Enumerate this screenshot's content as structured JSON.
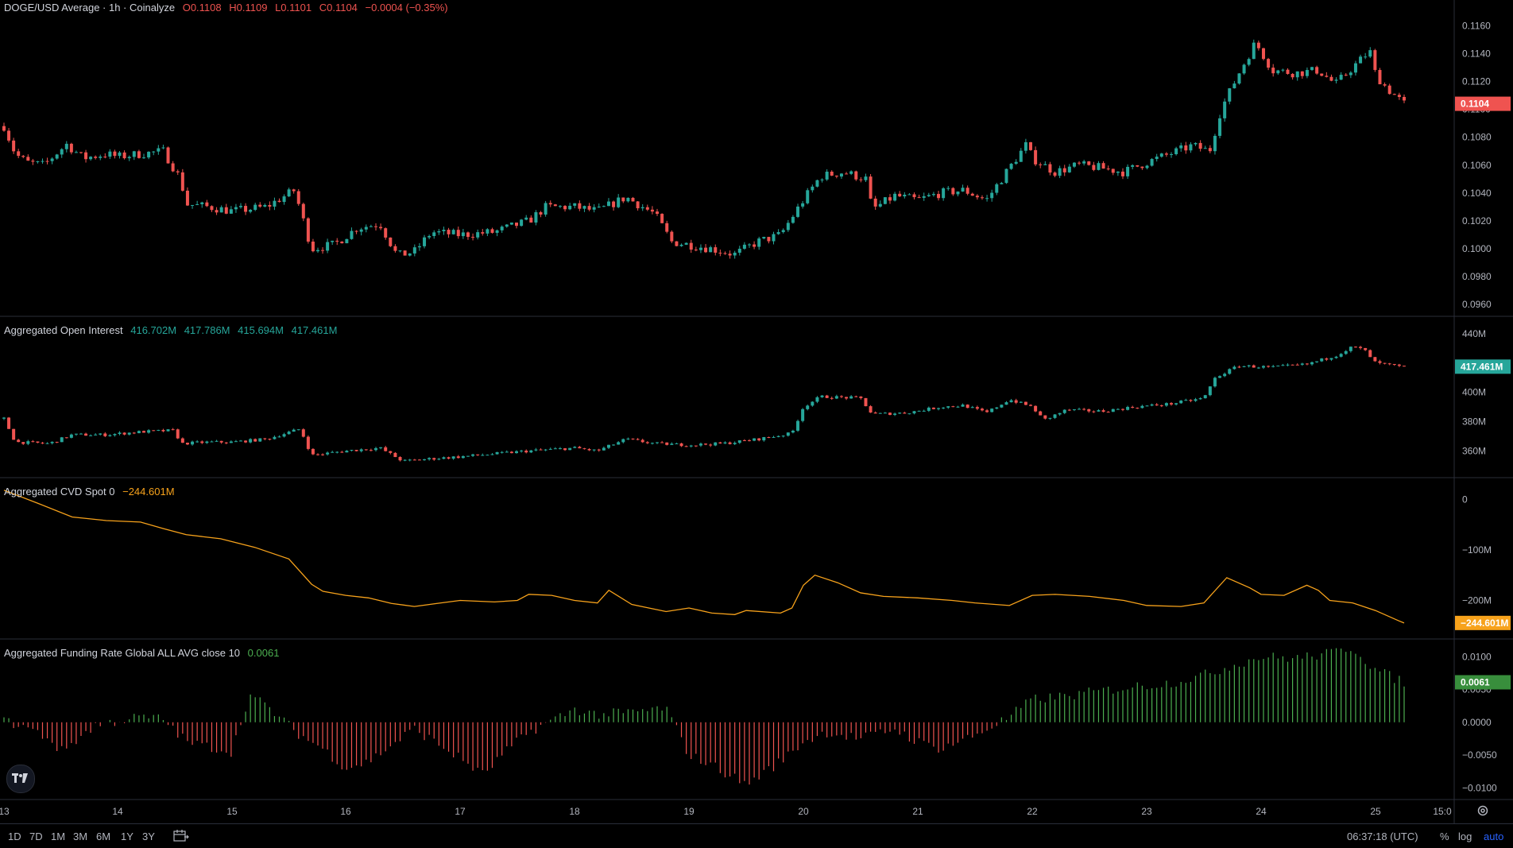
{
  "legend": {
    "price": {
      "title": "DOGE/USD Average · 1h · Coinalyze",
      "o": "O0.1108",
      "h": "H0.1109",
      "l": "L0.1101",
      "c": "C0.1104",
      "chg": "−0.0004 (−0.35%)"
    },
    "oi": {
      "title": "Aggregated Open Interest",
      "v1": "416.702M",
      "v2": "417.786M",
      "v3": "415.694M",
      "v4": "417.461M"
    },
    "cvd": {
      "title": "Aggregated CVD Spot 0",
      "value": "−244.601M"
    },
    "funding": {
      "title": "Aggregated Funding Rate Global ALL AVG close 10",
      "value": "0.0061"
    }
  },
  "colors": {
    "up": "#26a69a",
    "down": "#ef5350",
    "cvd": "#f7a21b",
    "fund_pos": "#4caf50",
    "fund_neg": "#ef5350",
    "grid": "#1e222d"
  },
  "bottom": {
    "ranges": [
      "1D",
      "7D",
      "1M",
      "3M",
      "6M",
      "1Y",
      "3Y"
    ],
    "time": "06:37:18 (UTC)",
    "pct": "%",
    "log": "log",
    "auto": "auto"
  },
  "chart_data": [
    {
      "type": "candlestick",
      "title": "DOGE/USD Average · 1h · Coinalyze",
      "x_axis_ticks": [
        "13",
        "14",
        "15",
        "16",
        "17",
        "18",
        "19",
        "20",
        "21",
        "22",
        "23",
        "24",
        "25",
        "15:0"
      ],
      "y_ticks": [
        "0.1160",
        "0.1140",
        "0.1120",
        "0.1100",
        "0.1080",
        "0.1060",
        "0.1040",
        "0.1020",
        "0.1000",
        "0.0980",
        "0.0960"
      ],
      "ylim": [
        0.0955,
        0.1175
      ],
      "last_value_label": "0.1104",
      "close_path": [
        [
          "13",
          0.1088
        ],
        [
          "13.1",
          0.1068
        ],
        [
          "13.2",
          0.1062
        ],
        [
          "13.35",
          0.106
        ],
        [
          "13.55",
          0.1075
        ],
        [
          "13.7",
          0.1065
        ],
        [
          "13.9",
          0.1068
        ],
        [
          "14",
          0.1066
        ],
        [
          "14.2",
          0.1068
        ],
        [
          "14.4",
          0.107
        ],
        [
          "14.55",
          0.105
        ],
        [
          "14.6",
          0.1032
        ],
        [
          "14.8",
          0.103
        ],
        [
          "15",
          0.1027
        ],
        [
          "15.3",
          0.103
        ],
        [
          "15.55",
          0.1042
        ],
        [
          "15.7",
          0.1
        ],
        [
          "15.9",
          0.1003
        ],
        [
          "16.1",
          0.1015
        ],
        [
          "16.3",
          0.1018
        ],
        [
          "16.45",
          0.0995
        ],
        [
          "16.6",
          0.0998
        ],
        [
          "16.75",
          0.1012
        ],
        [
          "17",
          0.101
        ],
        [
          "17.3",
          0.1012
        ],
        [
          "17.6",
          0.102
        ],
        [
          "17.75",
          0.103
        ],
        [
          "18",
          0.103
        ],
        [
          "18.2",
          0.1027
        ],
        [
          "18.45",
          0.1037
        ],
        [
          "18.7",
          0.1025
        ],
        [
          "18.85",
          0.1005
        ],
        [
          "19",
          0.1003
        ],
        [
          "19.2",
          0.1
        ],
        [
          "19.4",
          0.0996
        ],
        [
          "19.6",
          0.1005
        ],
        [
          "19.8",
          0.101
        ],
        [
          "20",
          0.1035
        ],
        [
          "20.15",
          0.1052
        ],
        [
          "20.35",
          0.1055
        ],
        [
          "20.55",
          0.105
        ],
        [
          "20.6",
          0.1028
        ],
        [
          "20.8",
          0.1038
        ],
        [
          "21",
          0.1035
        ],
        [
          "21.2",
          0.104
        ],
        [
          "21.4",
          0.1042
        ],
        [
          "21.6",
          0.1035
        ],
        [
          "21.8",
          0.1058
        ],
        [
          "21.95",
          0.1075
        ],
        [
          "22",
          0.1065
        ],
        [
          "22.2",
          0.1055
        ],
        [
          "22.4",
          0.106
        ],
        [
          "22.6",
          0.1058
        ],
        [
          "22.8",
          0.1055
        ],
        [
          "23",
          0.1062
        ],
        [
          "23.2",
          0.1068
        ],
        [
          "23.4",
          0.1074
        ],
        [
          "23.55",
          0.107
        ],
        [
          "23.65",
          0.11
        ],
        [
          "23.8",
          0.1125
        ],
        [
          "23.95",
          0.1148
        ],
        [
          "24.1",
          0.1128
        ],
        [
          "24.3",
          0.1126
        ],
        [
          "24.5",
          0.1128
        ],
        [
          "24.65",
          0.1118
        ],
        [
          "24.8",
          0.113
        ],
        [
          "24.95",
          0.1142
        ],
        [
          "25",
          0.1125
        ],
        [
          "25.1",
          0.1115
        ],
        [
          "25.25",
          0.1104
        ]
      ]
    },
    {
      "type": "candlestick",
      "title": "Aggregated Open Interest",
      "y_ticks": [
        "440M",
        "400M",
        "380M",
        "360M"
      ],
      "ylim": [
        345,
        448
      ],
      "last_value_label": "417.461M",
      "close_path": [
        [
          "13",
          382
        ],
        [
          "13.1",
          366
        ],
        [
          "13.4",
          365
        ],
        [
          "13.6",
          371
        ],
        [
          "13.9",
          371
        ],
        [
          "14.2",
          373
        ],
        [
          "14.5",
          374
        ],
        [
          "14.55",
          365
        ],
        [
          "14.8",
          366
        ],
        [
          "15",
          366
        ],
        [
          "15.3",
          368
        ],
        [
          "15.6",
          375
        ],
        [
          "15.7",
          357
        ],
        [
          "16",
          360
        ],
        [
          "16.3",
          362
        ],
        [
          "16.5",
          353
        ],
        [
          "16.8",
          355
        ],
        [
          "17",
          356
        ],
        [
          "17.3",
          358
        ],
        [
          "17.6",
          360
        ],
        [
          "18",
          362
        ],
        [
          "18.2",
          360
        ],
        [
          "18.45",
          368
        ],
        [
          "18.7",
          365
        ],
        [
          "19",
          364
        ],
        [
          "19.3",
          365
        ],
        [
          "19.6",
          368
        ],
        [
          "19.9",
          372
        ],
        [
          "20",
          390
        ],
        [
          "20.15",
          397
        ],
        [
          "20.5",
          396
        ],
        [
          "20.6",
          385
        ],
        [
          "20.9",
          386
        ],
        [
          "21.2",
          390
        ],
        [
          "21.4",
          391
        ],
        [
          "21.6",
          386
        ],
        [
          "21.8",
          395
        ],
        [
          "22",
          390
        ],
        [
          "22.1",
          381
        ],
        [
          "22.3",
          388
        ],
        [
          "22.6",
          387
        ],
        [
          "22.9",
          390
        ],
        [
          "23.2",
          392
        ],
        [
          "23.5",
          396
        ],
        [
          "23.6",
          410
        ],
        [
          "23.8",
          418
        ],
        [
          "24.1",
          417
        ],
        [
          "24.4",
          419
        ],
        [
          "24.65",
          425
        ],
        [
          "24.8",
          431
        ],
        [
          "24.9",
          429
        ],
        [
          "25",
          420
        ],
        [
          "25.25",
          417
        ]
      ]
    },
    {
      "type": "line",
      "title": "Aggregated CVD Spot 0",
      "y_ticks": [
        "0",
        "−100M",
        "−200M"
      ],
      "ylim": [
        -270,
        35
      ],
      "last_value_label": "−244.601M",
      "x": [
        "13",
        "13.3",
        "13.6",
        "13.9",
        "14.2",
        "14.4",
        "14.6",
        "14.9",
        "15.2",
        "15.5",
        "15.7",
        "15.8",
        "16",
        "16.2",
        "16.4",
        "16.6",
        "16.8",
        "17",
        "17.3",
        "17.5",
        "17.6",
        "17.8",
        "18",
        "18.2",
        "18.3",
        "18.5",
        "18.8",
        "19",
        "19.2",
        "19.4",
        "19.5",
        "19.8",
        "19.9",
        "20",
        "20.1",
        "20.3",
        "20.5",
        "20.7",
        "21",
        "21.3",
        "21.5",
        "21.8",
        "22",
        "22.2",
        "22.5",
        "22.8",
        "23",
        "23.3",
        "23.5",
        "23.7",
        "23.9",
        "24",
        "24.2",
        "24.4",
        "24.5",
        "24.6",
        "24.8",
        "25",
        "25.2",
        "25.25"
      ],
      "values": [
        18,
        -8,
        -35,
        -42,
        -45,
        -58,
        -70,
        -78,
        -95,
        -118,
        -168,
        -182,
        -190,
        -195,
        -206,
        -212,
        -206,
        -200,
        -203,
        -200,
        -188,
        -190,
        -200,
        -205,
        -180,
        -208,
        -222,
        -215,
        -225,
        -228,
        -220,
        -225,
        -215,
        -170,
        -150,
        -165,
        -185,
        -192,
        -195,
        -200,
        -205,
        -210,
        -190,
        -188,
        -192,
        -200,
        -210,
        -212,
        -205,
        -155,
        -175,
        -188,
        -190,
        -170,
        -180,
        -200,
        -205,
        -220,
        -240,
        -244.601
      ]
    },
    {
      "type": "bar",
      "title": "Aggregated Funding Rate Global ALL AVG close 10",
      "y_ticks": [
        "0.0100",
        "0.0050",
        "0.0000",
        "−0.0050",
        "−0.0100"
      ],
      "ylim": [
        -0.0113,
        0.0121
      ],
      "last_value_label": "0.0061",
      "x": [
        "13",
        "13.2",
        "13.4",
        "13.5",
        "13.8",
        "14",
        "14.2",
        "14.4",
        "14.6",
        "15",
        "15.15",
        "15.3",
        "15.6",
        "15.8",
        "16",
        "16.2",
        "16.4",
        "16.6",
        "17",
        "17.2",
        "17.4",
        "17.6",
        "18",
        "18.2",
        "18.5",
        "18.8",
        "19",
        "19.2",
        "19.5",
        "19.8",
        "20",
        "20.2",
        "20.5",
        "20.8",
        "21",
        "21.2",
        "21.5",
        "21.8",
        "22",
        "22.3",
        "22.6",
        "22.9",
        "23.2",
        "23.5",
        "23.8",
        "24",
        "24.3",
        "24.6",
        "24.8",
        "25",
        "25.25"
      ],
      "values": [
        0.0002,
        -0.0008,
        -0.0025,
        -0.0045,
        -0.0005,
        0.0002,
        0.0008,
        0.0005,
        -0.003,
        -0.0045,
        0.0042,
        0.0025,
        -0.002,
        -0.004,
        -0.007,
        -0.006,
        -0.0035,
        -0.001,
        -0.0055,
        -0.008,
        -0.0045,
        -0.0015,
        0.002,
        0.0012,
        0.0015,
        0.0022,
        -0.005,
        -0.0065,
        -0.0095,
        -0.006,
        -0.003,
        -0.0015,
        -0.0025,
        -0.001,
        -0.003,
        -0.004,
        -0.002,
        0.0008,
        0.0035,
        0.004,
        0.0048,
        0.0055,
        0.006,
        0.0072,
        0.009,
        0.01,
        0.0098,
        0.0105,
        0.0115,
        0.008,
        0.0061
      ]
    }
  ]
}
